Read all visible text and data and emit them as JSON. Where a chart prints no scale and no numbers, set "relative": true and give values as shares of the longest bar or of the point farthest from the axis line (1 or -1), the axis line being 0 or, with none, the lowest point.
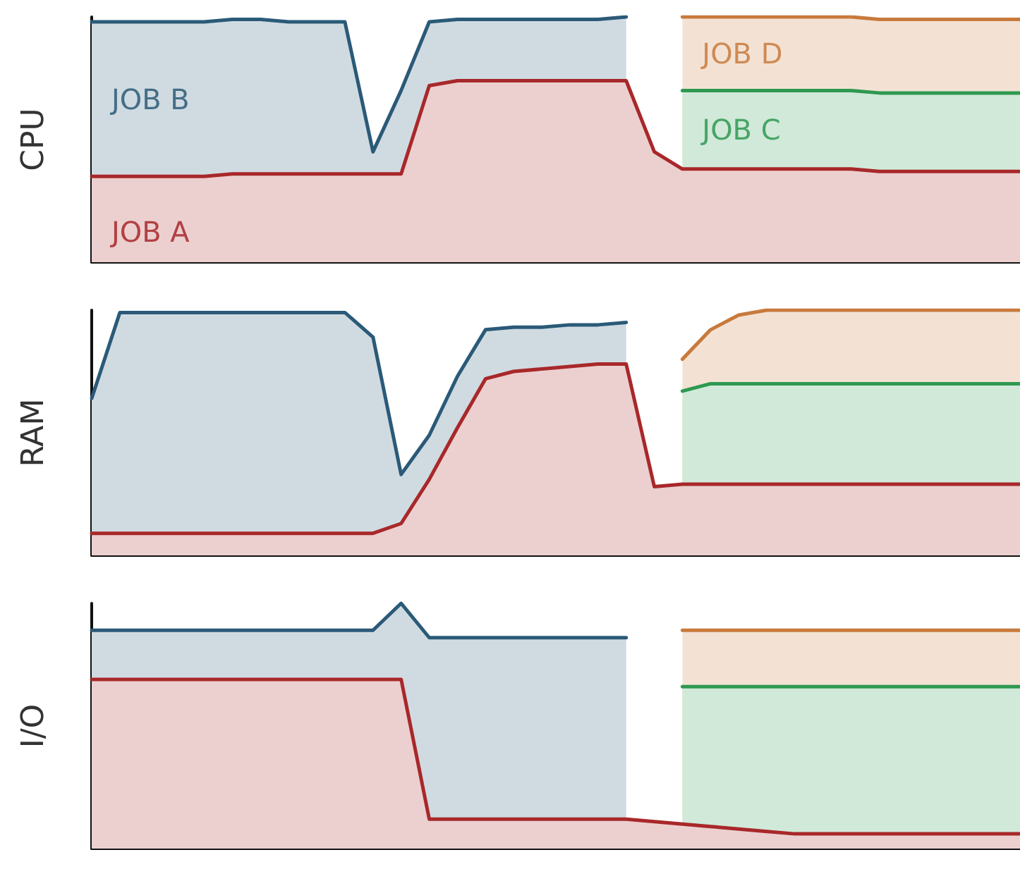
{
  "chart_data": [
    {
      "type": "area",
      "stacked": true,
      "relative": true,
      "tick_labels": false,
      "ylabel": "CPU",
      "categories": [
        null,
        null,
        null,
        null,
        null,
        null,
        null,
        null,
        null,
        null,
        null,
        null,
        null,
        null,
        null,
        null,
        null,
        null,
        null,
        null,
        null,
        null,
        null,
        null,
        null,
        null,
        null,
        null,
        null,
        null,
        null,
        null,
        null,
        null
      ],
      "series": [
        {
          "name": "JOB A",
          "color": "#a8282a",
          "values": [
            0.35,
            0.35,
            0.35,
            0.35,
            0.35,
            0.36,
            0.36,
            0.36,
            0.36,
            0.36,
            0.36,
            0.36,
            0.72,
            0.74,
            0.74,
            0.74,
            0.74,
            0.74,
            0.74,
            0.74,
            0.45,
            0.38,
            0.38,
            0.38,
            0.38,
            0.38,
            0.38,
            0.38,
            0.37,
            0.37,
            0.37,
            0.37,
            0.37,
            0.37
          ]
        },
        {
          "name": "JOB B",
          "color": "#2b5a78",
          "values": [
            0.63,
            0.63,
            0.63,
            0.63,
            0.63,
            0.63,
            0.63,
            0.62,
            0.62,
            0.62,
            0.09,
            0.34,
            0.26,
            0.25,
            0.25,
            0.25,
            0.25,
            0.25,
            0.25,
            0.26,
            null,
            null,
            null,
            null,
            null,
            null,
            null,
            null,
            null,
            null,
            null,
            null,
            null,
            null
          ]
        },
        {
          "name": "JOB C",
          "color": "#2e9950",
          "values": [
            null,
            null,
            null,
            null,
            null,
            null,
            null,
            null,
            null,
            null,
            null,
            null,
            null,
            null,
            null,
            null,
            null,
            null,
            null,
            null,
            null,
            0.32,
            0.32,
            0.32,
            0.32,
            0.32,
            0.32,
            0.32,
            0.32,
            0.32,
            0.32,
            0.32,
            0.32,
            0.32
          ]
        },
        {
          "name": "JOB D",
          "color": "#c87a3c",
          "values": [
            null,
            null,
            null,
            null,
            null,
            null,
            null,
            null,
            null,
            null,
            null,
            null,
            null,
            null,
            null,
            null,
            null,
            null,
            null,
            null,
            null,
            0.3,
            0.3,
            0.3,
            0.3,
            0.3,
            0.3,
            0.3,
            0.3,
            0.3,
            0.3,
            0.3,
            0.3,
            0.3
          ]
        }
      ]
    },
    {
      "type": "area",
      "stacked": true,
      "relative": true,
      "tick_labels": false,
      "ylabel": "RAM",
      "categories": [
        null,
        null,
        null,
        null,
        null,
        null,
        null,
        null,
        null,
        null,
        null,
        null,
        null,
        null,
        null,
        null,
        null,
        null,
        null,
        null,
        null,
        null,
        null,
        null,
        null,
        null,
        null,
        null,
        null,
        null,
        null,
        null,
        null,
        null
      ],
      "series": [
        {
          "color": "#a8282a",
          "values": [
            0.09,
            0.09,
            0.09,
            0.09,
            0.09,
            0.09,
            0.09,
            0.09,
            0.09,
            0.09,
            0.09,
            0.13,
            0.31,
            0.52,
            0.72,
            0.75,
            0.76,
            0.77,
            0.78,
            0.78,
            0.28,
            0.29,
            0.29,
            0.29,
            0.29,
            0.29,
            0.29,
            0.29,
            0.29,
            0.29,
            0.29,
            0.29,
            0.29,
            0.29
          ]
        },
        {
          "color": "#2b5a78",
          "values": [
            0.55,
            0.9,
            0.9,
            0.9,
            0.9,
            0.9,
            0.9,
            0.9,
            0.9,
            0.9,
            0.8,
            0.2,
            0.18,
            0.21,
            0.2,
            0.18,
            0.17,
            0.17,
            0.16,
            0.17,
            null,
            null,
            null,
            null,
            null,
            null,
            null,
            null,
            null,
            null,
            null,
            null,
            null,
            null
          ]
        },
        {
          "color": "#2e9950",
          "values": [
            null,
            null,
            null,
            null,
            null,
            null,
            null,
            null,
            null,
            null,
            null,
            null,
            null,
            null,
            null,
            null,
            null,
            null,
            null,
            null,
            null,
            0.38,
            0.41,
            0.41,
            0.41,
            0.41,
            0.41,
            0.41,
            0.41,
            0.41,
            0.41,
            0.41,
            0.41,
            0.41
          ]
        },
        {
          "color": "#c87a3c",
          "values": [
            null,
            null,
            null,
            null,
            null,
            null,
            null,
            null,
            null,
            null,
            null,
            null,
            null,
            null,
            null,
            null,
            null,
            null,
            null,
            null,
            null,
            0.13,
            0.22,
            0.28,
            0.3,
            0.3,
            0.3,
            0.3,
            0.3,
            0.3,
            0.3,
            0.3,
            0.3,
            0.3
          ]
        }
      ]
    },
    {
      "type": "area",
      "stacked": true,
      "relative": true,
      "tick_labels": false,
      "ylabel": "I/O",
      "categories": [
        null,
        null,
        null,
        null,
        null,
        null,
        null,
        null,
        null,
        null,
        null,
        null,
        null,
        null,
        null,
        null,
        null,
        null,
        null,
        null,
        null,
        null,
        null,
        null,
        null,
        null,
        null,
        null,
        null,
        null,
        null,
        null,
        null,
        null
      ],
      "series": [
        {
          "color": "#a8282a",
          "values": [
            0.69,
            0.69,
            0.69,
            0.69,
            0.69,
            0.69,
            0.69,
            0.69,
            0.69,
            0.69,
            0.69,
            0.69,
            0.12,
            0.12,
            0.12,
            0.12,
            0.12,
            0.12,
            0.12,
            0.12,
            0.11,
            0.1,
            0.09,
            0.08,
            0.07,
            0.06,
            0.06,
            0.06,
            0.06,
            0.06,
            0.06,
            0.06,
            0.06,
            0.06
          ]
        },
        {
          "color": "#2b5a78",
          "values": [
            0.2,
            0.2,
            0.2,
            0.2,
            0.2,
            0.2,
            0.2,
            0.2,
            0.2,
            0.2,
            0.2,
            0.31,
            0.74,
            0.74,
            0.74,
            0.74,
            0.74,
            0.74,
            0.74,
            0.74,
            null,
            null,
            null,
            null,
            null,
            null,
            null,
            null,
            null,
            null,
            null,
            null,
            null,
            null
          ]
        },
        {
          "color": "#2e9950",
          "values": [
            null,
            null,
            null,
            null,
            null,
            null,
            null,
            null,
            null,
            null,
            null,
            null,
            null,
            null,
            null,
            null,
            null,
            null,
            null,
            null,
            null,
            0.56,
            0.57,
            0.58,
            0.59,
            0.6,
            0.6,
            0.6,
            0.6,
            0.6,
            0.6,
            0.6,
            0.6,
            0.6
          ]
        },
        {
          "color": "#c87a3c",
          "values": [
            null,
            null,
            null,
            null,
            null,
            null,
            null,
            null,
            null,
            null,
            null,
            null,
            null,
            null,
            null,
            null,
            null,
            null,
            null,
            null,
            null,
            0.23,
            0.23,
            0.23,
            0.23,
            0.23,
            0.23,
            0.23,
            0.23,
            0.23,
            0.23,
            0.23,
            0.23,
            0.23
          ]
        }
      ]
    }
  ]
}
